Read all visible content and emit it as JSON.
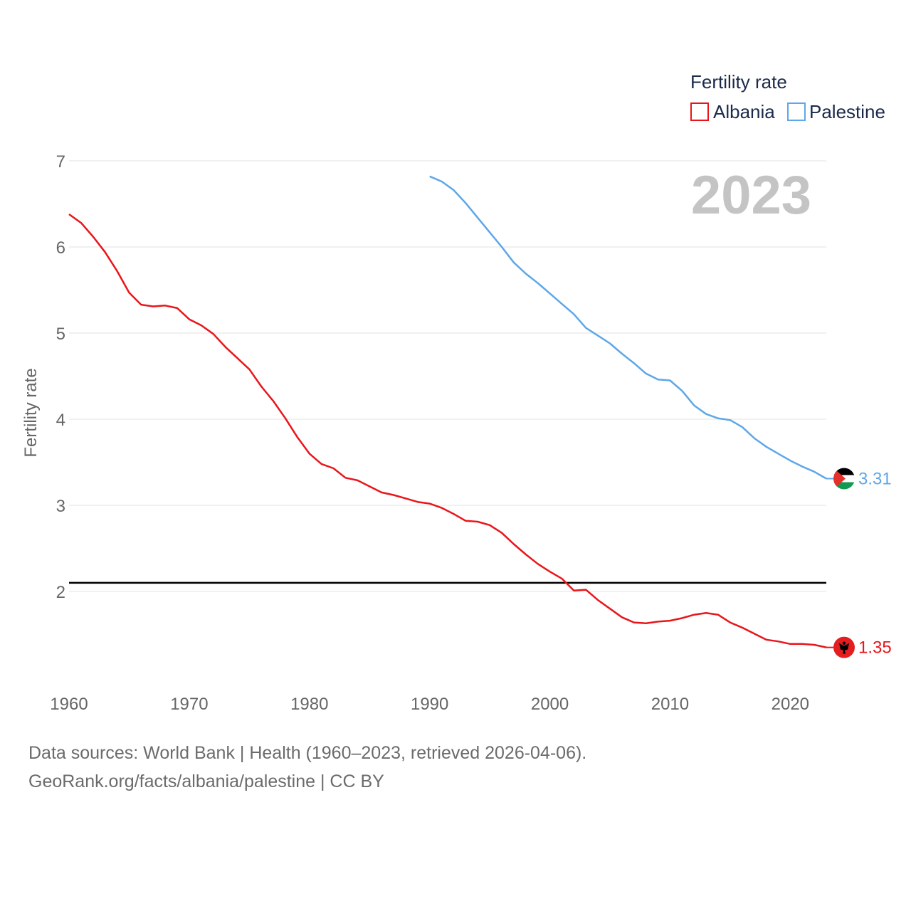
{
  "chart_data": {
    "type": "line",
    "title": "Fertility rate",
    "ylabel": "Fertility rate",
    "xlabel": "",
    "year_label": "2023",
    "xlim": [
      1960,
      2023
    ],
    "ylim": [
      1,
      7
    ],
    "yticks": [
      2,
      3,
      4,
      5,
      6,
      7
    ],
    "xticks": [
      1960,
      1970,
      1980,
      1990,
      2000,
      2010,
      2020
    ],
    "reference_line": {
      "y": 2.1,
      "color": "#000000"
    },
    "legend": {
      "title": "Fertility rate",
      "placement": "top-right"
    },
    "series": [
      {
        "name": "Albania",
        "color": "#e8161b",
        "end_label": "1.35",
        "flag_icon": "albania-flag-icon",
        "x": [
          1960,
          1961,
          1962,
          1963,
          1964,
          1965,
          1966,
          1967,
          1968,
          1969,
          1970,
          1971,
          1972,
          1973,
          1974,
          1975,
          1976,
          1977,
          1978,
          1979,
          1980,
          1981,
          1982,
          1983,
          1984,
          1985,
          1986,
          1987,
          1988,
          1989,
          1990,
          1991,
          1992,
          1993,
          1994,
          1995,
          1996,
          1997,
          1998,
          1999,
          2000,
          2001,
          2002,
          2003,
          2004,
          2005,
          2006,
          2007,
          2008,
          2009,
          2010,
          2011,
          2012,
          2013,
          2014,
          2015,
          2016,
          2017,
          2018,
          2019,
          2020,
          2021,
          2022,
          2023
        ],
        "values": [
          6.38,
          6.28,
          6.12,
          5.94,
          5.72,
          5.47,
          5.33,
          5.31,
          5.32,
          5.29,
          5.16,
          5.09,
          4.99,
          4.84,
          4.71,
          4.58,
          4.38,
          4.21,
          4.01,
          3.79,
          3.6,
          3.48,
          3.43,
          3.32,
          3.29,
          3.22,
          3.15,
          3.12,
          3.08,
          3.04,
          3.02,
          2.97,
          2.9,
          2.82,
          2.81,
          2.77,
          2.68,
          2.55,
          2.43,
          2.32,
          2.23,
          2.15,
          2.01,
          2.02,
          1.9,
          1.8,
          1.7,
          1.64,
          1.63,
          1.65,
          1.66,
          1.69,
          1.73,
          1.75,
          1.73,
          1.64,
          1.58,
          1.51,
          1.44,
          1.42,
          1.39,
          1.39,
          1.38,
          1.35
        ]
      },
      {
        "name": "Palestine",
        "color": "#5ea7e8",
        "end_label": "3.31",
        "flag_icon": "palestine-flag-icon",
        "x": [
          1990,
          1991,
          1992,
          1993,
          1994,
          1995,
          1996,
          1997,
          1998,
          1999,
          2000,
          2001,
          2002,
          2003,
          2004,
          2005,
          2006,
          2007,
          2008,
          2009,
          2010,
          2011,
          2012,
          2013,
          2014,
          2015,
          2016,
          2017,
          2018,
          2019,
          2020,
          2021,
          2022,
          2023
        ],
        "values": [
          6.82,
          6.76,
          6.66,
          6.51,
          6.34,
          6.17,
          6.0,
          5.82,
          5.69,
          5.58,
          5.46,
          5.34,
          5.22,
          5.06,
          4.97,
          4.88,
          4.76,
          4.65,
          4.53,
          4.46,
          4.45,
          4.33,
          4.16,
          4.06,
          4.01,
          3.99,
          3.91,
          3.78,
          3.68,
          3.6,
          3.52,
          3.45,
          3.39,
          3.31
        ]
      }
    ]
  },
  "footer": {
    "sources": "Data sources: World Bank | Health (1960–2023, retrieved 2026-04-06).",
    "attribution": "GeoRank.org/facts/albania/palestine | CC BY"
  }
}
